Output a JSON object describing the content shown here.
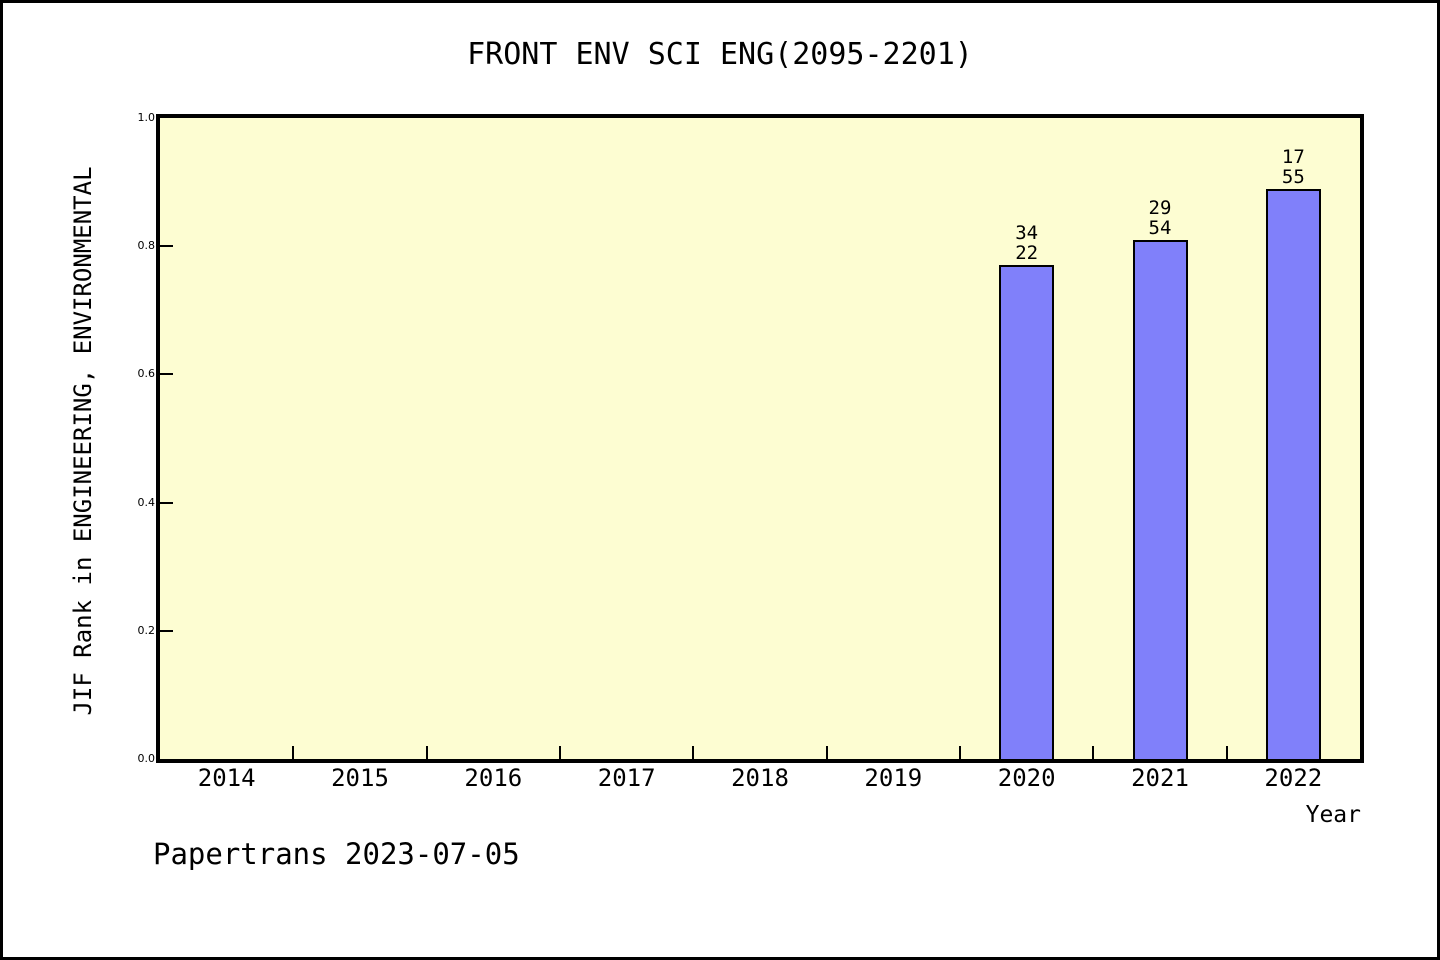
{
  "page": {
    "source_note": "Papertrans 2023-07-05"
  },
  "chart_data": {
    "type": "bar",
    "title": "FRONT ENV SCI ENG(2095-2201)",
    "xlabel": "Year",
    "ylabel": "JIF Rank in ENGINEERING, ENVIRONMENTAL",
    "categories": [
      "2014",
      "2015",
      "2016",
      "2017",
      "2018",
      "2019",
      "2020",
      "2021",
      "2022"
    ],
    "values": [
      null,
      null,
      null,
      null,
      null,
      null,
      0.77,
      0.81,
      0.89
    ],
    "bar_labels": [
      null,
      null,
      null,
      null,
      null,
      null,
      [
        "34",
        "22"
      ],
      [
        "29",
        "54"
      ],
      [
        "17",
        "55"
      ]
    ],
    "ylim": [
      0,
      1
    ],
    "yticks": [
      0.0,
      0.2,
      0.4,
      0.6,
      0.8,
      1.0
    ],
    "ytick_labels": [
      "0.0",
      "0.2",
      "0.4",
      "0.6",
      "0.8",
      "1.0"
    ],
    "grid": false,
    "legend_position": "none",
    "colors": {
      "bar": "#8080FA",
      "bar_border": "#000000",
      "plot_bg": "#FDFDD2",
      "frame": "#000000",
      "page_bg": "#FFFFFF",
      "text": "#000000"
    }
  }
}
